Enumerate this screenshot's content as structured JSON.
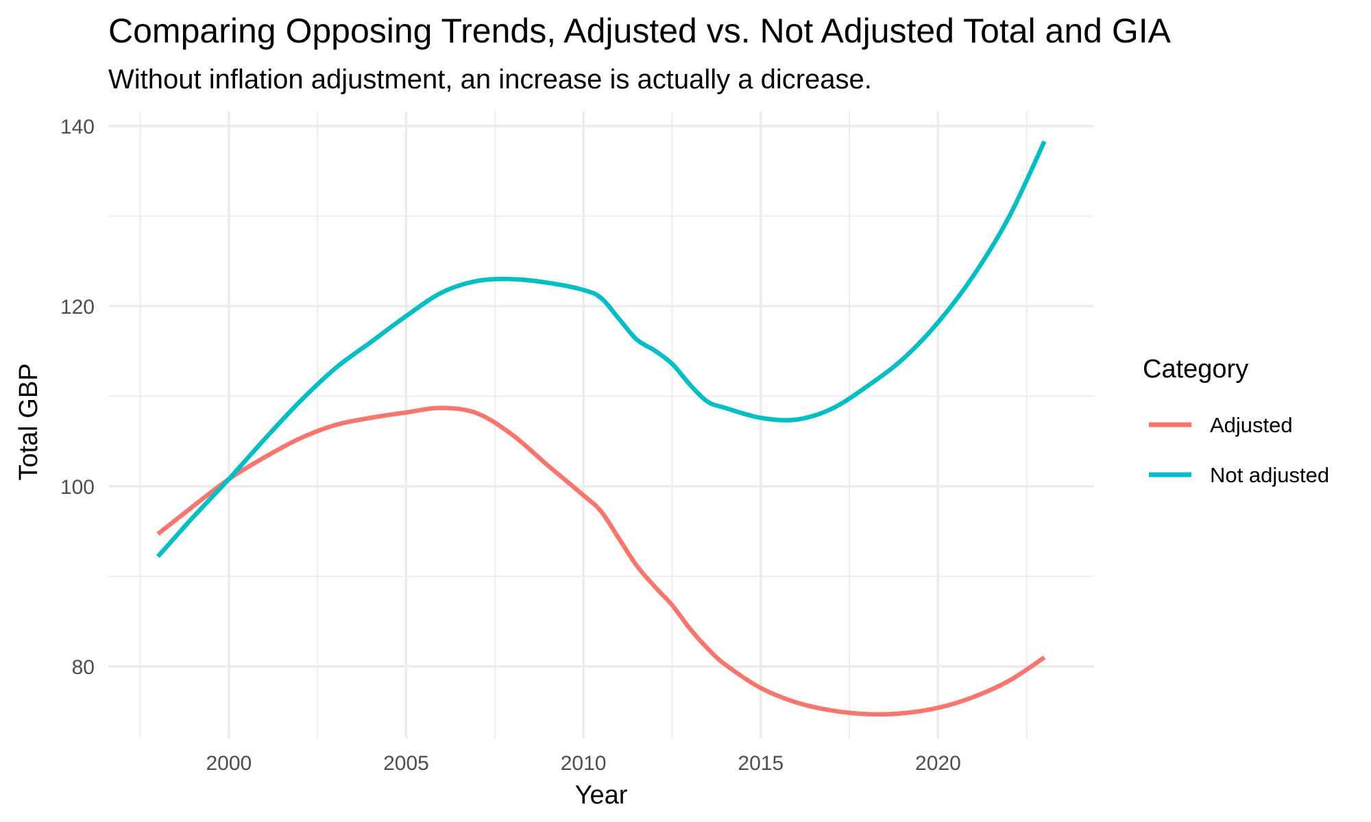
{
  "chart_data": {
    "type": "line",
    "title": "Comparing Opposing Trends, Adjusted vs. Not Adjusted Total and GIA",
    "subtitle": "Without inflation adjustment, an increase is actually a dicrease.",
    "xlabel": "Year",
    "ylabel": "Total GBP",
    "xlim": [
      1996.6,
      2024.4
    ],
    "ylim": [
      72,
      141.6
    ],
    "x_ticks": [
      2000,
      2005,
      2010,
      2015,
      2020
    ],
    "x_tick_labels": [
      "2000",
      "2005",
      "2010",
      "2015",
      "2020"
    ],
    "x_minor_ticks": [
      1997.5,
      2002.5,
      2007.5,
      2012.5,
      2017.5,
      2022.5
    ],
    "y_ticks": [
      80,
      100,
      120,
      140
    ],
    "y_tick_labels": [
      "80",
      "100",
      "120",
      "140"
    ],
    "y_minor_ticks": [
      90,
      110,
      130
    ],
    "grid": true,
    "legend": {
      "title": "Category",
      "position": "right"
    },
    "x": [
      1998,
      1999,
      2000,
      2001,
      2002,
      2003,
      2004,
      2005,
      2006,
      2007,
      2008,
      2009,
      2010,
      2010.5,
      2011,
      2011.5,
      2012,
      2012.5,
      2013,
      2013.5,
      2014,
      2015,
      2016,
      2017,
      2018,
      2019,
      2020,
      2021,
      2022,
      2023
    ],
    "series": [
      {
        "name": "Adjusted",
        "color": "#F8766D",
        "values": [
          94.7,
          97.8,
          100.8,
          103.2,
          105.3,
          106.8,
          107.6,
          108.2,
          108.7,
          108.1,
          105.7,
          102.3,
          99.0,
          97.2,
          94.2,
          91.2,
          88.9,
          86.8,
          84.2,
          82.0,
          80.2,
          77.6,
          76.0,
          75.1,
          74.7,
          74.8,
          75.4,
          76.6,
          78.4,
          81.0
        ]
      },
      {
        "name": "Not adjusted",
        "color": "#00BFC4",
        "values": [
          92.2,
          96.6,
          100.8,
          105.2,
          109.4,
          113.1,
          116.0,
          118.9,
          121.5,
          122.8,
          123.0,
          122.6,
          121.8,
          120.9,
          118.6,
          116.3,
          115.1,
          113.6,
          111.3,
          109.4,
          108.7,
          107.6,
          107.4,
          108.6,
          111.1,
          114.1,
          118.2,
          123.4,
          129.9,
          138.3
        ]
      }
    ]
  }
}
